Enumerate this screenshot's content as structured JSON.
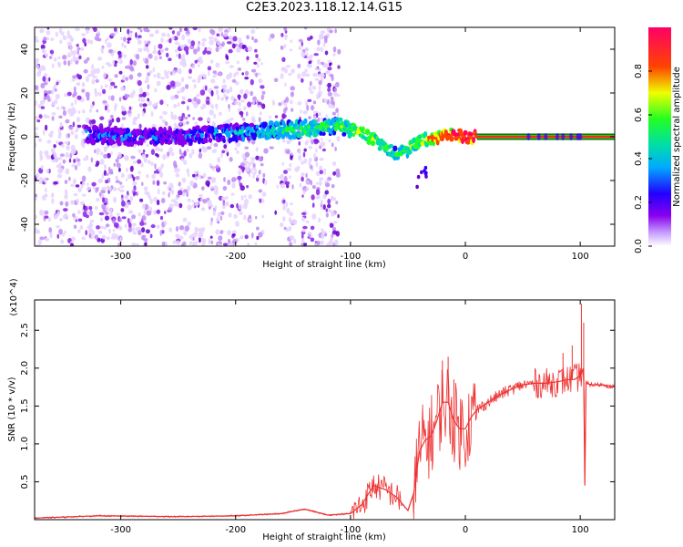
{
  "title": "C2E3.2023.118.12.14.G15",
  "colors": {
    "snr_line": "#ee3333",
    "carrier_line": "#ff2222",
    "carrier_edge": "#006600",
    "frame": "#000000",
    "colormap": [
      "#f2e8ff",
      "#d9b3ff",
      "#8800ee",
      "#3300ff",
      "#00ccff",
      "#22ff22",
      "#ffff00",
      "#ff2200",
      "#ff0066"
    ]
  },
  "chart_data": [
    {
      "type": "heatmap",
      "xlabel": "Height of straight line (km)",
      "ylabel": "Frequency (Hz)",
      "xlim": [
        -375,
        130
      ],
      "ylim": [
        -50,
        50
      ],
      "xticks": [
        -300,
        -200,
        -100,
        0,
        100
      ],
      "xtick_labels": [
        "-300",
        "-200",
        "-100",
        "0",
        "100"
      ],
      "yticks": [
        -40,
        -20,
        0,
        20,
        40
      ],
      "ytick_labels": [
        "-40",
        "-20",
        "0",
        "20",
        "40"
      ],
      "grid": false,
      "colorbar": {
        "label": "Normalized spectral amplitude",
        "range": [
          0,
          1
        ],
        "ticks": [
          0.0,
          0.2,
          0.4,
          0.6,
          0.8
        ],
        "tick_labels": [
          "0.0",
          "0.2",
          "0.4",
          "0.6",
          "0.8"
        ]
      },
      "signal_track": {
        "x": [
          -330,
          -300,
          -250,
          -200,
          -160,
          -130,
          -110,
          -90,
          -75,
          -60,
          -50,
          -40,
          -30,
          -20,
          -10,
          0,
          50,
          100,
          130
        ],
        "y": [
          1,
          0,
          0,
          2,
          3,
          4,
          5,
          2,
          -3,
          -8,
          -6,
          -2,
          -1,
          0,
          1,
          0,
          0,
          0,
          0
        ],
        "amplitude": [
          0.25,
          0.2,
          0.2,
          0.3,
          0.45,
          0.5,
          0.5,
          0.6,
          0.55,
          0.4,
          0.5,
          0.6,
          0.7,
          0.8,
          0.85,
          0.9,
          0.95,
          1.0,
          1.0
        ]
      },
      "noise_region_x": [
        -375,
        -110
      ]
    },
    {
      "type": "line",
      "xlabel": "Height of straight line (km)",
      "ylabel": "SNR (10 * v/v)",
      "y_multiplier": "(x10^4)",
      "xlim": [
        -375,
        130
      ],
      "ylim": [
        0,
        2.9
      ],
      "xticks": [
        -300,
        -200,
        -100,
        0,
        100
      ],
      "xtick_labels": [
        "-300",
        "-200",
        "-100",
        "0",
        "100"
      ],
      "yticks": [
        0.5,
        1.0,
        1.5,
        2.0,
        2.5
      ],
      "ytick_labels": [
        "0.5",
        "1.0",
        "1.5",
        "2.0",
        "2.5"
      ],
      "grid": false,
      "series": [
        {
          "x": [
            -375,
            -320,
            -250,
            -200,
            -160,
            -140,
            -120,
            -100,
            -90,
            -80,
            -70,
            -60,
            -50,
            -45,
            -40,
            -35,
            -30,
            -25,
            -20,
            -15,
            -10,
            -5,
            0,
            5,
            10,
            20,
            30,
            40,
            50,
            60,
            70,
            80,
            90,
            95,
            100,
            103,
            104,
            105,
            110,
            120,
            130
          ],
          "y": [
            0.02,
            0.05,
            0.04,
            0.05,
            0.08,
            0.14,
            0.06,
            0.08,
            0.2,
            0.45,
            0.4,
            0.3,
            0.12,
            0.35,
            0.9,
            1.05,
            1.1,
            1.3,
            1.55,
            1.55,
            1.3,
            1.2,
            1.2,
            1.35,
            1.45,
            1.55,
            1.65,
            1.72,
            1.78,
            1.8,
            1.8,
            1.82,
            1.85,
            1.85,
            1.9,
            2.0,
            0.45,
            1.8,
            1.78,
            1.78,
            1.75
          ]
        }
      ]
    }
  ]
}
